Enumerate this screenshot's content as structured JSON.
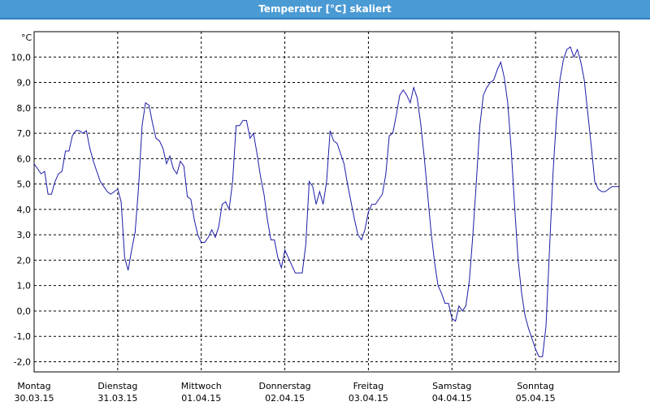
{
  "window": {
    "title": "Temperatur [°C] skaliert"
  },
  "colors": {
    "title_bar": "#4a9ad4",
    "line": "#1c1ca8",
    "grid": "#000000"
  },
  "chart_data": {
    "type": "line",
    "title": "Temperatur [°C] skaliert",
    "ylabel": "°C",
    "xlabel": "",
    "grid": true,
    "ylim": [
      -2.4,
      11.0
    ],
    "xlim": [
      "2015-03-30T00:00",
      "2015-04-06T00:00"
    ],
    "y_ticks": [
      "10,0",
      "9,0",
      "8,0",
      "7,0",
      "6,0",
      "5,0",
      "4,0",
      "3,0",
      "2,0",
      "1,0",
      "0,0",
      "-1,0",
      "-2,0"
    ],
    "y_tick_values": [
      10,
      9,
      8,
      7,
      6,
      5,
      4,
      3,
      2,
      1,
      0,
      -1,
      -2
    ],
    "x_ticks": [
      {
        "day": "Montag",
        "date": "30.03.15"
      },
      {
        "day": "Dienstag",
        "date": "31.03.15"
      },
      {
        "day": "Mittwoch",
        "date": "01.04.15"
      },
      {
        "day": "Donnerstag",
        "date": "02.04.15"
      },
      {
        "day": "Freitag",
        "date": "03.04.15"
      },
      {
        "day": "Samstag",
        "date": "04.04.15"
      },
      {
        "day": "Sonntag",
        "date": "05.04.15"
      }
    ],
    "series": [
      {
        "x": [
          "2015-03-30T00:00",
          "2015-03-30T01:00",
          "2015-03-30T02:00",
          "2015-03-30T03:00",
          "2015-03-30T04:00",
          "2015-03-30T05:00",
          "2015-03-30T06:00",
          "2015-03-30T07:00",
          "2015-03-30T08:00",
          "2015-03-30T09:00",
          "2015-03-30T10:00",
          "2015-03-30T11:00",
          "2015-03-30T12:00",
          "2015-03-30T13:00",
          "2015-03-30T14:00",
          "2015-03-30T15:00",
          "2015-03-30T16:00",
          "2015-03-30T17:00",
          "2015-03-30T18:00",
          "2015-03-30T19:00",
          "2015-03-30T20:00",
          "2015-03-30T21:00",
          "2015-03-30T22:00",
          "2015-03-30T23:00",
          "2015-03-31T00:00",
          "2015-03-31T01:00",
          "2015-03-31T02:00",
          "2015-03-31T03:00",
          "2015-03-31T04:00",
          "2015-03-31T05:00",
          "2015-03-31T06:00",
          "2015-03-31T07:00",
          "2015-03-31T08:00",
          "2015-03-31T09:00",
          "2015-03-31T10:00",
          "2015-03-31T11:00",
          "2015-03-31T12:00",
          "2015-03-31T13:00",
          "2015-03-31T14:00",
          "2015-03-31T15:00",
          "2015-03-31T16:00",
          "2015-03-31T17:00",
          "2015-03-31T18:00",
          "2015-03-31T19:00",
          "2015-03-31T20:00",
          "2015-03-31T21:00",
          "2015-03-31T22:00",
          "2015-03-31T23:00",
          "2015-04-01T00:00",
          "2015-04-01T01:00",
          "2015-04-01T02:00",
          "2015-04-01T03:00",
          "2015-04-01T04:00",
          "2015-04-01T05:00",
          "2015-04-01T06:00",
          "2015-04-01T07:00",
          "2015-04-01T08:00",
          "2015-04-01T09:00",
          "2015-04-01T10:00",
          "2015-04-01T11:00",
          "2015-04-01T12:00",
          "2015-04-01T13:00",
          "2015-04-01T14:00",
          "2015-04-01T15:00",
          "2015-04-01T16:00",
          "2015-04-01T17:00",
          "2015-04-01T18:00",
          "2015-04-01T19:00",
          "2015-04-01T20:00",
          "2015-04-01T21:00",
          "2015-04-01T22:00",
          "2015-04-01T23:00",
          "2015-04-02T00:00",
          "2015-04-02T01:00",
          "2015-04-02T02:00",
          "2015-04-02T03:00",
          "2015-04-02T04:00",
          "2015-04-02T05:00",
          "2015-04-02T06:00",
          "2015-04-02T07:00",
          "2015-04-02T08:00",
          "2015-04-02T09:00",
          "2015-04-02T10:00",
          "2015-04-02T11:00",
          "2015-04-02T12:00",
          "2015-04-02T13:00",
          "2015-04-02T14:00",
          "2015-04-02T15:00",
          "2015-04-02T16:00",
          "2015-04-02T17:00",
          "2015-04-02T18:00",
          "2015-04-02T19:00",
          "2015-04-02T20:00",
          "2015-04-02T21:00",
          "2015-04-02T22:00",
          "2015-04-02T23:00",
          "2015-04-03T00:00",
          "2015-04-03T01:00",
          "2015-04-03T02:00",
          "2015-04-03T03:00",
          "2015-04-03T04:00",
          "2015-04-03T05:00",
          "2015-04-03T06:00",
          "2015-04-03T07:00",
          "2015-04-03T08:00",
          "2015-04-03T09:00",
          "2015-04-03T10:00",
          "2015-04-03T11:00",
          "2015-04-03T12:00",
          "2015-04-03T13:00",
          "2015-04-03T14:00",
          "2015-04-03T15:00",
          "2015-04-03T16:00",
          "2015-04-03T17:00",
          "2015-04-03T18:00",
          "2015-04-03T19:00",
          "2015-04-03T20:00",
          "2015-04-03T21:00",
          "2015-04-03T22:00",
          "2015-04-03T23:00",
          "2015-04-04T00:00",
          "2015-04-04T01:00",
          "2015-04-04T02:00",
          "2015-04-04T03:00",
          "2015-04-04T04:00",
          "2015-04-04T05:00",
          "2015-04-04T06:00",
          "2015-04-04T07:00",
          "2015-04-04T08:00",
          "2015-04-04T09:00",
          "2015-04-04T10:00",
          "2015-04-04T11:00",
          "2015-04-04T12:00",
          "2015-04-04T13:00",
          "2015-04-04T14:00",
          "2015-04-04T15:00",
          "2015-04-04T16:00",
          "2015-04-04T17:00",
          "2015-04-04T18:00",
          "2015-04-04T19:00",
          "2015-04-04T20:00",
          "2015-04-04T21:00",
          "2015-04-04T22:00",
          "2015-04-04T23:00",
          "2015-04-05T00:00",
          "2015-04-05T01:00",
          "2015-04-05T02:00",
          "2015-04-05T03:00",
          "2015-04-05T04:00",
          "2015-04-05T05:00",
          "2015-04-05T06:00",
          "2015-04-05T07:00",
          "2015-04-05T08:00",
          "2015-04-05T09:00",
          "2015-04-05T10:00",
          "2015-04-05T11:00",
          "2015-04-05T12:00",
          "2015-04-05T13:00",
          "2015-04-05T14:00",
          "2015-04-05T15:00",
          "2015-04-05T16:00",
          "2015-04-05T17:00",
          "2015-04-05T18:00",
          "2015-04-05T19:00",
          "2015-04-05T20:00",
          "2015-04-05T21:00",
          "2015-04-05T22:00",
          "2015-04-05T23:00",
          "2015-04-06T00:00"
        ],
        "values": [
          5.8,
          5.6,
          5.4,
          5.5,
          4.6,
          4.6,
          5.1,
          5.4,
          5.5,
          6.3,
          6.3,
          6.9,
          7.1,
          7.1,
          7.0,
          7.1,
          6.4,
          5.9,
          5.5,
          5.1,
          4.9,
          4.7,
          4.6,
          4.7,
          4.8,
          4.3,
          2.1,
          1.6,
          2.4,
          3.1,
          4.9,
          7.3,
          8.2,
          8.1,
          7.4,
          6.8,
          6.7,
          6.4,
          5.8,
          6.1,
          5.6,
          5.4,
          5.9,
          5.7,
          4.5,
          4.4,
          3.6,
          3.0,
          2.7,
          2.7,
          2.9,
          3.2,
          2.9,
          3.3,
          4.2,
          4.3,
          4.0,
          5.1,
          7.3,
          7.3,
          7.5,
          7.5,
          6.8,
          7.0,
          6.2,
          5.3,
          4.6,
          3.6,
          2.8,
          2.8,
          2.1,
          1.7,
          2.4,
          2.1,
          1.8,
          1.5,
          1.5,
          1.5,
          2.6,
          5.1,
          4.9,
          4.2,
          4.7,
          4.2,
          5.1,
          7.1,
          6.7,
          6.6,
          6.2,
          5.8,
          5.0,
          4.3,
          3.6,
          3.0,
          2.8,
          3.2,
          3.9,
          4.2,
          4.2,
          4.4,
          4.6,
          5.4,
          6.9,
          7.0,
          7.7,
          8.5,
          8.7,
          8.5,
          8.2,
          8.8,
          8.4,
          7.4,
          6.1,
          4.6,
          3.1,
          1.9,
          1.0,
          0.7,
          0.3,
          0.3,
          -0.3,
          -0.4,
          0.2,
          0.0,
          0.2,
          1.2,
          3.0,
          5.1,
          7.3,
          8.5,
          8.8,
          9.0,
          9.1,
          9.5,
          9.8,
          9.2,
          8.2,
          6.4,
          4.1,
          2.0,
          0.7,
          -0.2,
          -0.7,
          -1.1,
          -1.5,
          -1.8,
          -1.8,
          -0.6,
          2.4,
          5.4,
          7.6,
          9.1,
          9.9,
          10.3,
          10.4,
          10.0,
          10.3,
          9.8,
          9.1,
          7.8,
          6.5,
          5.1,
          4.8,
          4.7,
          4.7,
          4.8,
          4.9,
          4.9,
          4.9
        ]
      }
    ]
  }
}
